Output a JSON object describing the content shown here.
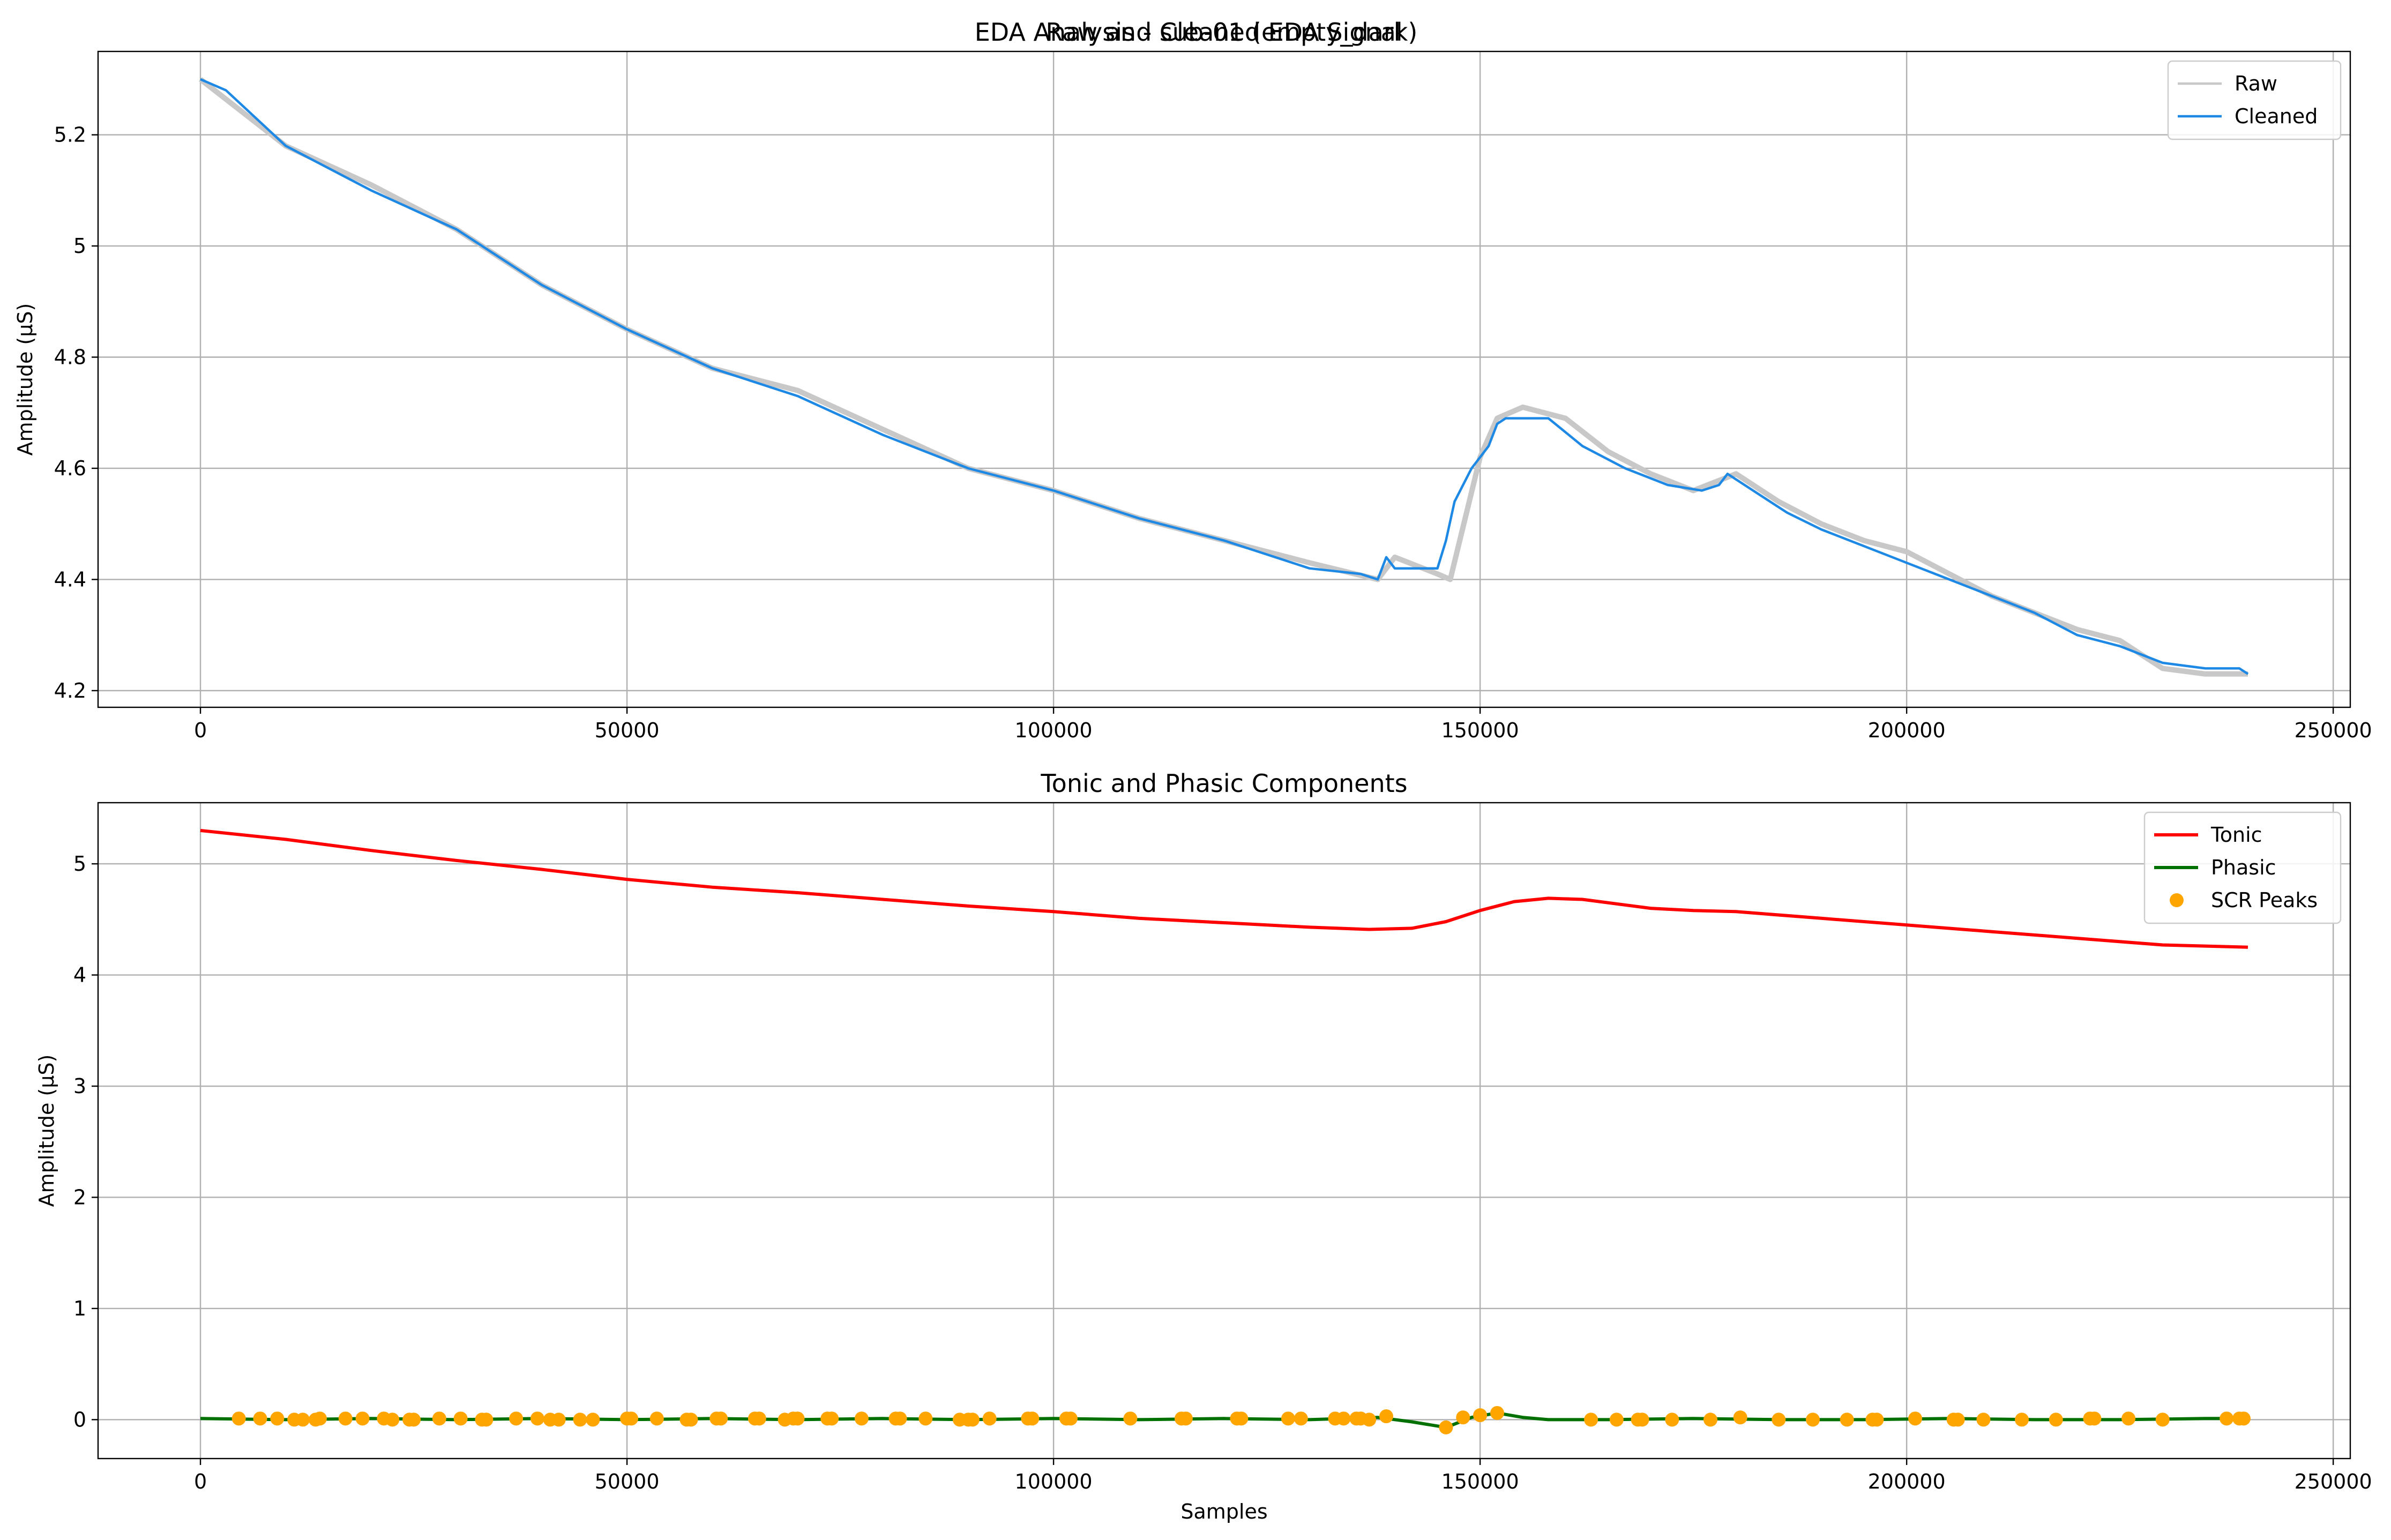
{
  "figure": {
    "suptitle": "EDA Analysis - sub-01 (empty_dark)"
  },
  "chart_data": [
    {
      "type": "line",
      "title": "Raw and Cleaned EDA Signal",
      "xlabel": "",
      "ylabel": "Amplitude (µS)",
      "xlim": [
        -12000,
        252000
      ],
      "ylim": [
        4.17,
        5.35
      ],
      "xticks": [
        0,
        50000,
        100000,
        150000,
        200000,
        250000
      ],
      "yticks": [
        4.2,
        4.4,
        4.6,
        4.8,
        5.0,
        5.2
      ],
      "grid": true,
      "legend": {
        "placement": "top-right",
        "entries": [
          "Raw",
          "Cleaned"
        ]
      },
      "series": [
        {
          "name": "Raw",
          "color": "#c8c8c8",
          "x": [
            0,
            10000,
            20000,
            30000,
            40000,
            50000,
            60000,
            70000,
            80000,
            90000,
            100000,
            110000,
            120000,
            130000,
            138000,
            140000,
            145000,
            146500,
            150000,
            152000,
            155000,
            160000,
            165000,
            170000,
            175000,
            180000,
            185000,
            190000,
            195000,
            200000,
            205000,
            210000,
            215000,
            220000,
            225000,
            230000,
            235000,
            240000
          ],
          "y": [
            5.3,
            5.18,
            5.11,
            5.03,
            4.93,
            4.85,
            4.78,
            4.74,
            4.67,
            4.6,
            4.56,
            4.51,
            4.47,
            4.43,
            4.4,
            4.44,
            4.41,
            4.4,
            4.62,
            4.69,
            4.71,
            4.69,
            4.63,
            4.59,
            4.56,
            4.59,
            4.54,
            4.5,
            4.47,
            4.45,
            4.41,
            4.37,
            4.34,
            4.31,
            4.29,
            4.24,
            4.23,
            4.23
          ]
        },
        {
          "name": "Cleaned",
          "color": "#1e88e5",
          "x": [
            0,
            3000,
            10000,
            20000,
            30000,
            40000,
            50000,
            60000,
            70000,
            80000,
            90000,
            100000,
            110000,
            120000,
            130000,
            136000,
            138000,
            139000,
            140000,
            145000,
            146000,
            147000,
            149000,
            151000,
            152000,
            153000,
            158000,
            162000,
            167000,
            172000,
            176000,
            178000,
            179000,
            182000,
            186000,
            190000,
            195000,
            200000,
            205000,
            210000,
            215000,
            220000,
            225000,
            230000,
            235000,
            239000,
            240000
          ],
          "y": [
            5.3,
            5.28,
            5.18,
            5.1,
            5.03,
            4.93,
            4.85,
            4.78,
            4.73,
            4.66,
            4.6,
            4.56,
            4.51,
            4.47,
            4.42,
            4.41,
            4.4,
            4.44,
            4.42,
            4.42,
            4.47,
            4.54,
            4.6,
            4.64,
            4.68,
            4.69,
            4.69,
            4.64,
            4.6,
            4.57,
            4.56,
            4.57,
            4.59,
            4.56,
            4.52,
            4.49,
            4.46,
            4.43,
            4.4,
            4.37,
            4.34,
            4.3,
            4.28,
            4.25,
            4.24,
            4.24,
            4.23
          ]
        }
      ]
    },
    {
      "type": "line",
      "title": "Tonic and Phasic Components",
      "xlabel": "Samples",
      "ylabel": "Amplitude (µS)",
      "xlim": [
        -12000,
        252000
      ],
      "ylim": [
        -0.35,
        5.55
      ],
      "xticks": [
        0,
        50000,
        100000,
        150000,
        200000,
        250000
      ],
      "yticks": [
        0,
        1,
        2,
        3,
        4,
        5
      ],
      "grid": true,
      "legend": {
        "placement": "top-right",
        "entries": [
          "Tonic",
          "Phasic",
          "SCR Peaks"
        ]
      },
      "series": [
        {
          "name": "Tonic",
          "color": "#ff0000",
          "x": [
            0,
            10000,
            20000,
            30000,
            40000,
            50000,
            60000,
            70000,
            80000,
            90000,
            100000,
            110000,
            120000,
            130000,
            137000,
            142000,
            146000,
            150000,
            154000,
            158000,
            162000,
            166000,
            170000,
            175000,
            180000,
            190000,
            200000,
            210000,
            220000,
            230000,
            240000
          ],
          "y": [
            5.3,
            5.22,
            5.12,
            5.03,
            4.95,
            4.86,
            4.79,
            4.74,
            4.68,
            4.62,
            4.57,
            4.51,
            4.47,
            4.43,
            4.41,
            4.42,
            4.48,
            4.58,
            4.66,
            4.69,
            4.68,
            4.64,
            4.6,
            4.58,
            4.57,
            4.51,
            4.45,
            4.39,
            4.33,
            4.27,
            4.25
          ]
        },
        {
          "name": "Phasic",
          "color": "#007000",
          "x": [
            0,
            10000,
            20000,
            30000,
            40000,
            50000,
            60000,
            70000,
            80000,
            90000,
            100000,
            110000,
            120000,
            130000,
            138000,
            142000,
            146000,
            149000,
            152000,
            155000,
            158000,
            165000,
            175000,
            185000,
            195000,
            205000,
            215000,
            225000,
            235000,
            240000
          ],
          "y": [
            0.01,
            0.0,
            0.01,
            0.0,
            0.01,
            0.0,
            0.01,
            0.0,
            0.01,
            0.0,
            0.01,
            0.0,
            0.01,
            0.0,
            0.02,
            -0.02,
            -0.07,
            0.02,
            0.06,
            0.02,
            0.0,
            0.0,
            0.01,
            0.0,
            0.0,
            0.01,
            0.0,
            0.0,
            0.01,
            0.01
          ]
        },
        {
          "name": "SCR Peaks",
          "type": "scatter",
          "color": "#ffa500",
          "x": [
            4500,
            7000,
            9000,
            11000,
            12000,
            13500,
            14000,
            17000,
            19000,
            21500,
            22500,
            24500,
            25000,
            28000,
            30500,
            33000,
            33500,
            37000,
            39500,
            41000,
            42000,
            44500,
            46000,
            50000,
            50500,
            53500,
            57000,
            57500,
            60500,
            61000,
            65000,
            65500,
            68500,
            69500,
            70000,
            73500,
            74000,
            77500,
            81500,
            82000,
            85000,
            89000,
            90000,
            90500,
            92500,
            97000,
            97500,
            101500,
            102000,
            109000,
            115000,
            115500,
            121500,
            122000,
            127500,
            129000,
            133000,
            134000,
            135500,
            136000,
            137000,
            139000,
            146000,
            148000,
            150000,
            152000,
            163000,
            166000,
            168500,
            169000,
            172500,
            177000,
            180500,
            185000,
            189000,
            193000,
            196000,
            196500,
            201000,
            205500,
            206000,
            209000,
            213500,
            217500,
            221500,
            222000,
            226000,
            230000,
            237500,
            239000,
            239500
          ],
          "y": [
            0.01,
            0.01,
            0.01,
            0.0,
            0.0,
            0.0,
            0.01,
            0.01,
            0.01,
            0.01,
            0.0,
            0.0,
            0.0,
            0.01,
            0.01,
            0.0,
            0.0,
            0.01,
            0.01,
            0.0,
            0.0,
            0.0,
            0.0,
            0.01,
            0.01,
            0.01,
            0.0,
            0.0,
            0.01,
            0.01,
            0.01,
            0.01,
            0.0,
            0.01,
            0.01,
            0.01,
            0.01,
            0.01,
            0.01,
            0.01,
            0.01,
            0.0,
            0.0,
            0.0,
            0.01,
            0.01,
            0.01,
            0.01,
            0.01,
            0.01,
            0.01,
            0.01,
            0.01,
            0.01,
            0.01,
            0.01,
            0.01,
            0.01,
            0.01,
            0.01,
            0.0,
            0.03,
            -0.07,
            0.02,
            0.04,
            0.06,
            0.0,
            0.0,
            0.0,
            0.0,
            0.0,
            0.0,
            0.02,
            0.0,
            0.0,
            0.0,
            0.0,
            0.0,
            0.01,
            0.0,
            0.0,
            0.0,
            0.0,
            0.0,
            0.01,
            0.01,
            0.01,
            0.0,
            0.01,
            0.01,
            0.01
          ]
        }
      ]
    }
  ]
}
